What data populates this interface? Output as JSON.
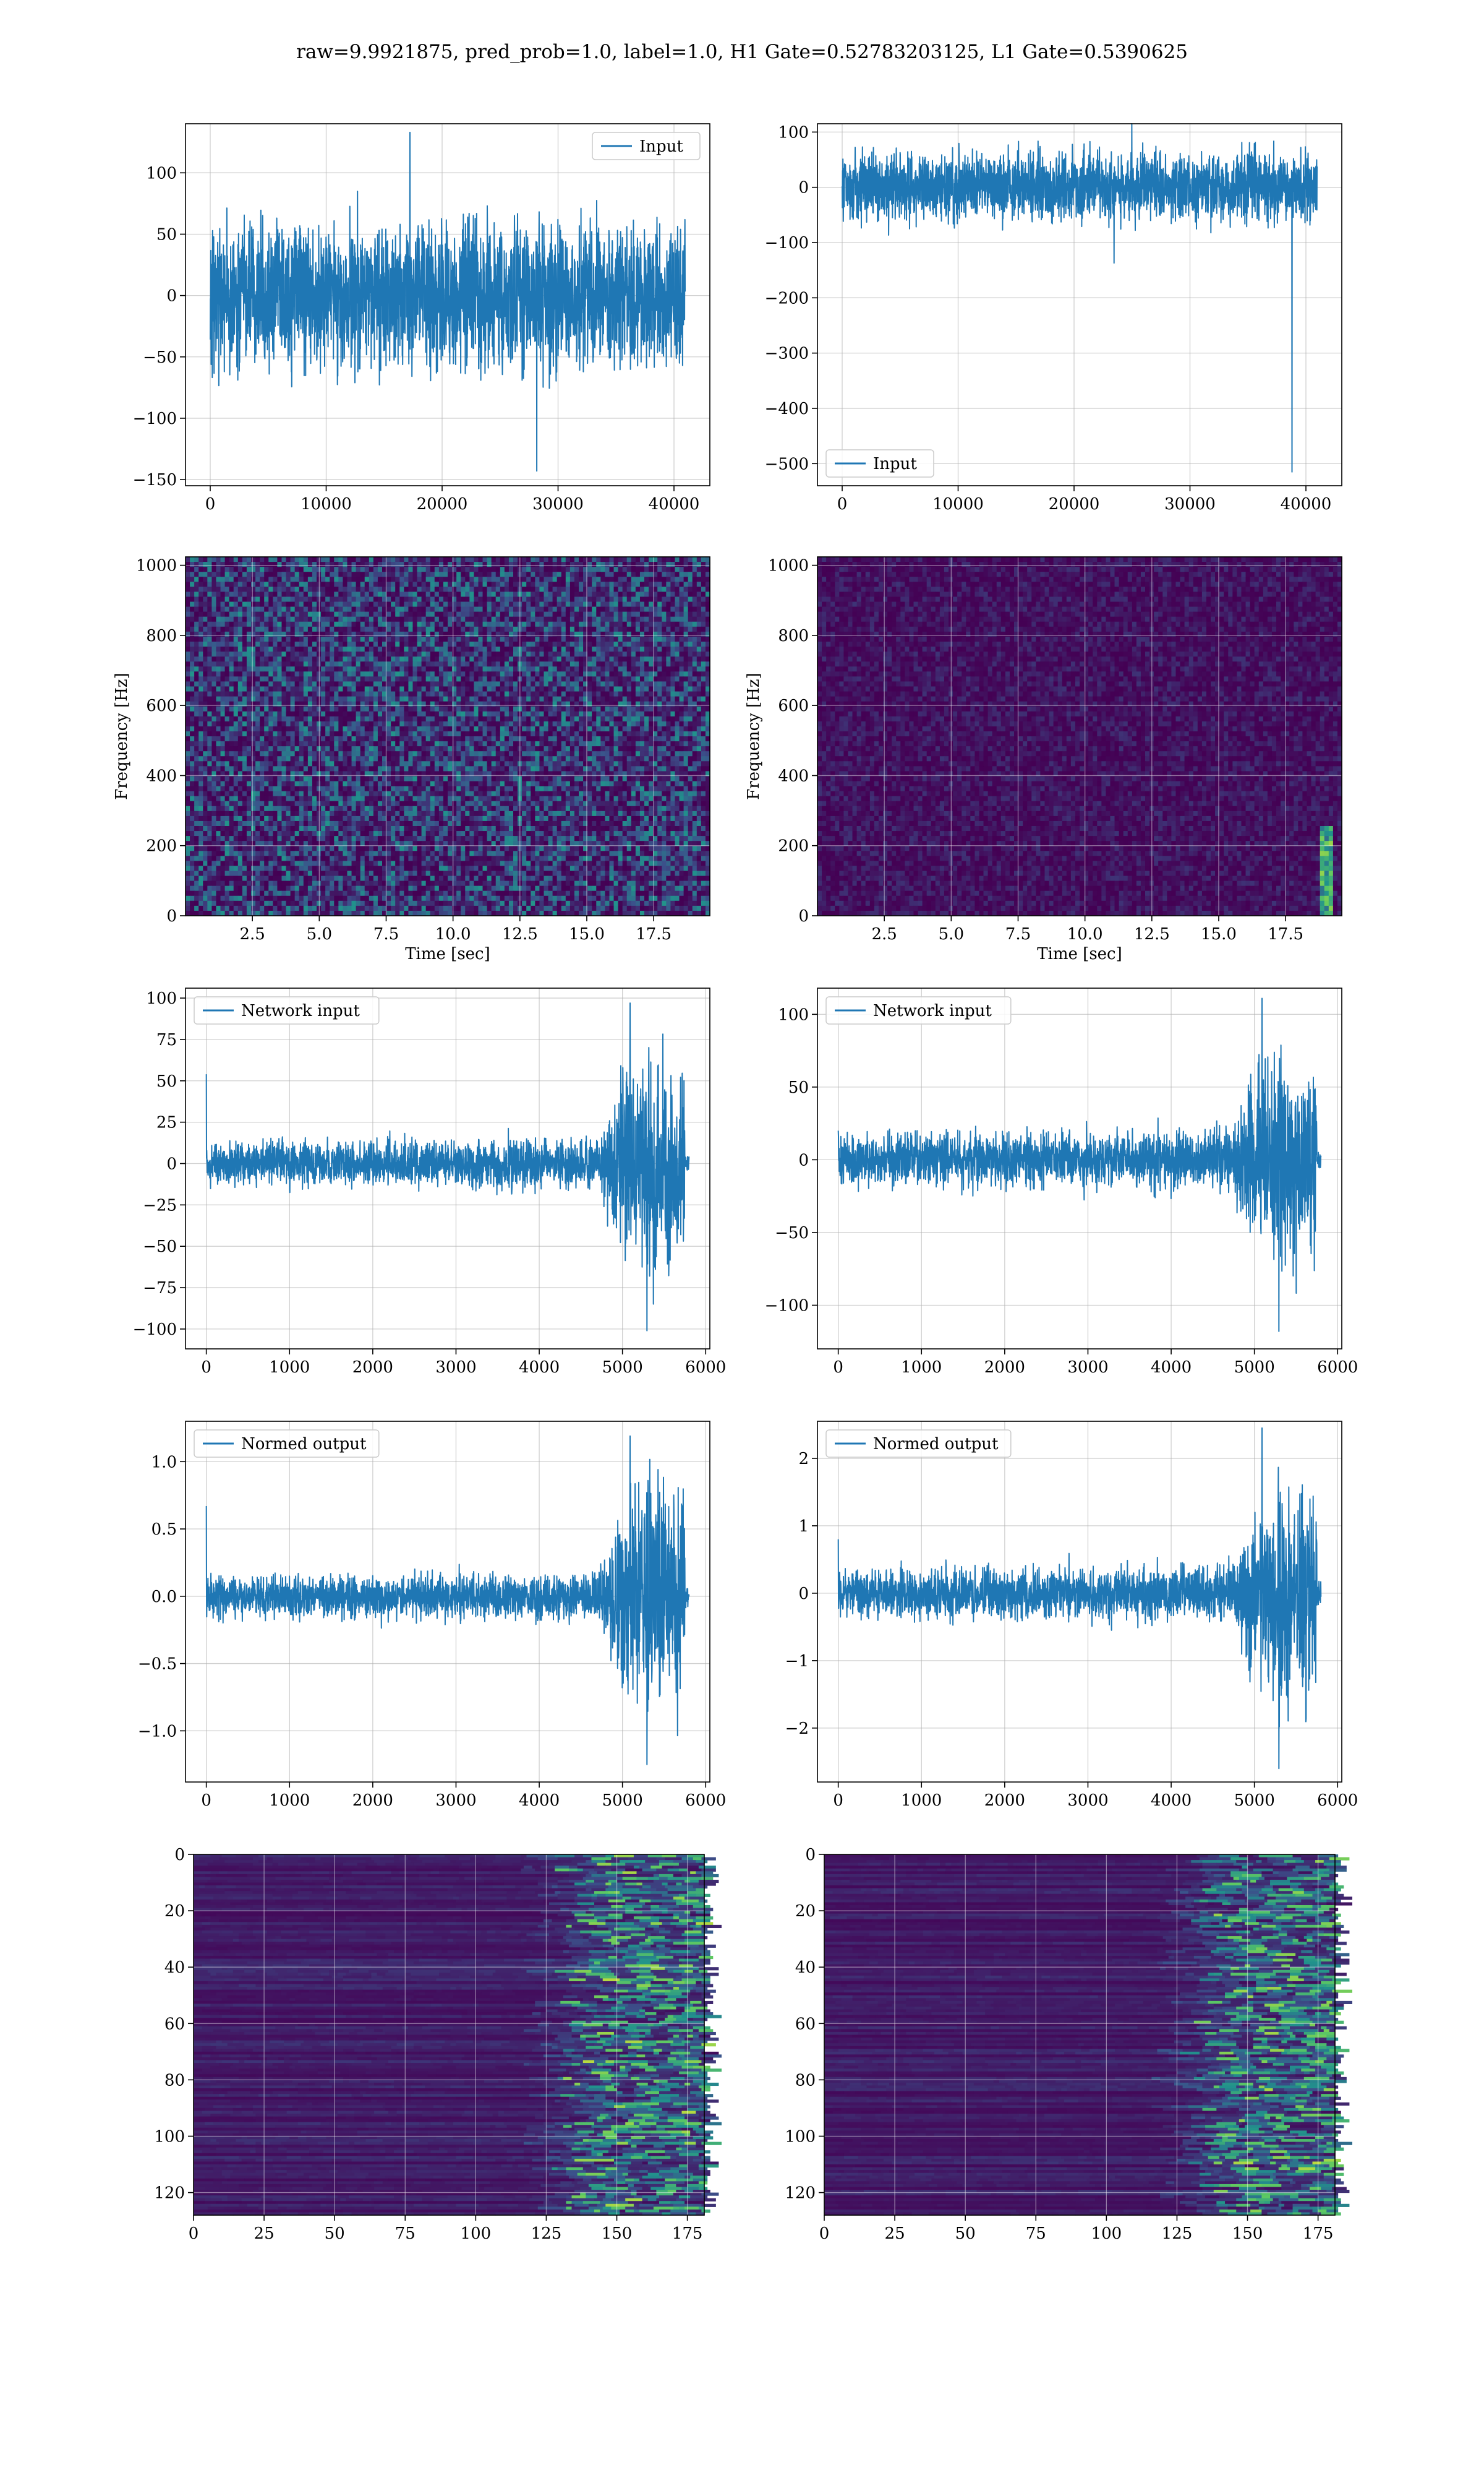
{
  "figure_title": "raw=9.9921875, pred_prob=1.0, label=1.0, H1 Gate=0.52783203125, L1 Gate=0.5390625",
  "colors": {
    "line": "#1f77b4",
    "grid": "#b0b0b0",
    "viridis_low": "#440154",
    "viridis_high": "#fde725"
  },
  "chart_data": [
    {
      "type": "line",
      "x_range": [
        0,
        40960
      ],
      "ylim": [
        -155,
        140
      ],
      "xticks": [
        0,
        10000,
        20000,
        30000,
        40000
      ],
      "yticks": [
        -150,
        -100,
        -50,
        0,
        50,
        100
      ],
      "xlabel": "",
      "ylabel": "",
      "grid": true,
      "legend_loc": "upper right",
      "series": [
        {
          "name": "Input",
          "noise_std": 28,
          "peak_max": 133,
          "peak_min": -143,
          "spike_x": null,
          "spike_y": null
        }
      ]
    },
    {
      "type": "line",
      "x_range": [
        0,
        40960
      ],
      "ylim": [
        -540,
        115
      ],
      "xticks": [
        0,
        10000,
        20000,
        30000,
        40000
      ],
      "yticks": [
        -500,
        -400,
        -300,
        -200,
        -100,
        0,
        100
      ],
      "xlabel": "",
      "ylabel": "",
      "grid": true,
      "legend_loc": "lower left",
      "series": [
        {
          "name": "Input",
          "noise_std": 30,
          "peak_max": 143,
          "peak_min": -137,
          "spike_x": 38800,
          "spike_y": -515
        }
      ]
    },
    {
      "type": "heatmap",
      "x_range": [
        0,
        19.6
      ],
      "ylim": [
        0,
        1024
      ],
      "xticks": [
        2.5,
        5.0,
        7.5,
        10.0,
        12.5,
        15.0,
        17.5
      ],
      "yticks": [
        0,
        200,
        400,
        600,
        800,
        1000
      ],
      "xlabel": "Time [sec]",
      "ylabel": "Frequency [Hz]",
      "grid": true,
      "colormap": "viridis",
      "intensity_mean": 0.2,
      "hotspot": null
    },
    {
      "type": "heatmap",
      "x_range": [
        0,
        19.6
      ],
      "ylim": [
        0,
        1024
      ],
      "xticks": [
        2.5,
        5.0,
        7.5,
        10.0,
        12.5,
        15.0,
        17.5
      ],
      "yticks": [
        0,
        200,
        400,
        600,
        800,
        1000
      ],
      "xlabel": "Time [sec]",
      "ylabel": "Frequency [Hz]",
      "grid": true,
      "colormap": "viridis",
      "intensity_mean": 0.06,
      "hotspot": {
        "x": 19.0,
        "y_from": 0,
        "y_to": 260
      }
    },
    {
      "type": "line",
      "x_range": [
        -250,
        6050
      ],
      "ylim": [
        -112,
        106
      ],
      "xticks": [
        0,
        1000,
        2000,
        3000,
        4000,
        5000,
        6000
      ],
      "yticks": [
        -100,
        -75,
        -50,
        -25,
        0,
        25,
        50,
        75,
        100
      ],
      "xlabel": "",
      "ylabel": "",
      "grid": true,
      "legend_loc": "upper left",
      "series": [
        {
          "name": "Network input",
          "base_std": 6,
          "burst_std": 30,
          "burst_from": 4700,
          "burst_to": 5750,
          "end_x": 5800,
          "peak_max": 97,
          "peak_min": -101,
          "first_value": 54
        }
      ]
    },
    {
      "type": "line",
      "x_range": [
        -250,
        6050
      ],
      "ylim": [
        -130,
        118
      ],
      "xticks": [
        0,
        1000,
        2000,
        3000,
        4000,
        5000,
        6000
      ],
      "yticks": [
        -100,
        -50,
        0,
        50,
        100
      ],
      "xlabel": "",
      "ylabel": "",
      "grid": true,
      "legend_loc": "upper left",
      "series": [
        {
          "name": "Network input",
          "base_std": 8,
          "burst_std": 32,
          "burst_from": 4700,
          "burst_to": 5750,
          "end_x": 5800,
          "peak_max": 111,
          "peak_min": -118,
          "first_value": 20
        }
      ]
    },
    {
      "type": "line",
      "x_range": [
        -250,
        6050
      ],
      "ylim": [
        -1.38,
        1.3
      ],
      "xticks": [
        0,
        1000,
        2000,
        3000,
        4000,
        5000,
        6000
      ],
      "yticks": [
        -1.0,
        -0.5,
        0.0,
        0.5,
        1.0
      ],
      "xlabel": "",
      "ylabel": "",
      "grid": true,
      "legend_loc": "upper left",
      "series": [
        {
          "name": "Normed output",
          "base_std": 0.07,
          "burst_std": 0.38,
          "burst_from": 4700,
          "burst_to": 5750,
          "end_x": 5800,
          "peak_max": 1.19,
          "peak_min": -1.25,
          "first_value": 0.67
        }
      ]
    },
    {
      "type": "line",
      "x_range": [
        -250,
        6050
      ],
      "ylim": [
        -2.8,
        2.55
      ],
      "xticks": [
        0,
        1000,
        2000,
        3000,
        4000,
        5000,
        6000
      ],
      "yticks": [
        -2,
        -1,
        0,
        1,
        2
      ],
      "xlabel": "",
      "ylabel": "",
      "grid": true,
      "legend_loc": "upper left",
      "series": [
        {
          "name": "Normed output",
          "base_std": 0.17,
          "burst_std": 0.7,
          "burst_from": 4700,
          "burst_to": 5750,
          "end_x": 5800,
          "peak_max": 2.45,
          "peak_min": -2.6,
          "first_value": 0.8
        }
      ]
    },
    {
      "type": "heatmap",
      "x_range": [
        0,
        181
      ],
      "ylim": [
        128,
        0
      ],
      "xticks": [
        0,
        25,
        50,
        75,
        100,
        125,
        150,
        175
      ],
      "yticks": [
        0,
        20,
        40,
        60,
        80,
        100,
        120
      ],
      "xlabel": "",
      "ylabel": "",
      "grid": true,
      "colormap": "viridis",
      "activity_from": 125,
      "y_inverted": true
    },
    {
      "type": "heatmap",
      "x_range": [
        0,
        181
      ],
      "ylim": [
        128,
        0
      ],
      "xticks": [
        0,
        25,
        50,
        75,
        100,
        125,
        150,
        175
      ],
      "yticks": [
        0,
        20,
        40,
        60,
        80,
        100,
        120
      ],
      "xlabel": "",
      "ylabel": "",
      "grid": true,
      "colormap": "viridis",
      "activity_from": 125,
      "y_inverted": true
    }
  ]
}
